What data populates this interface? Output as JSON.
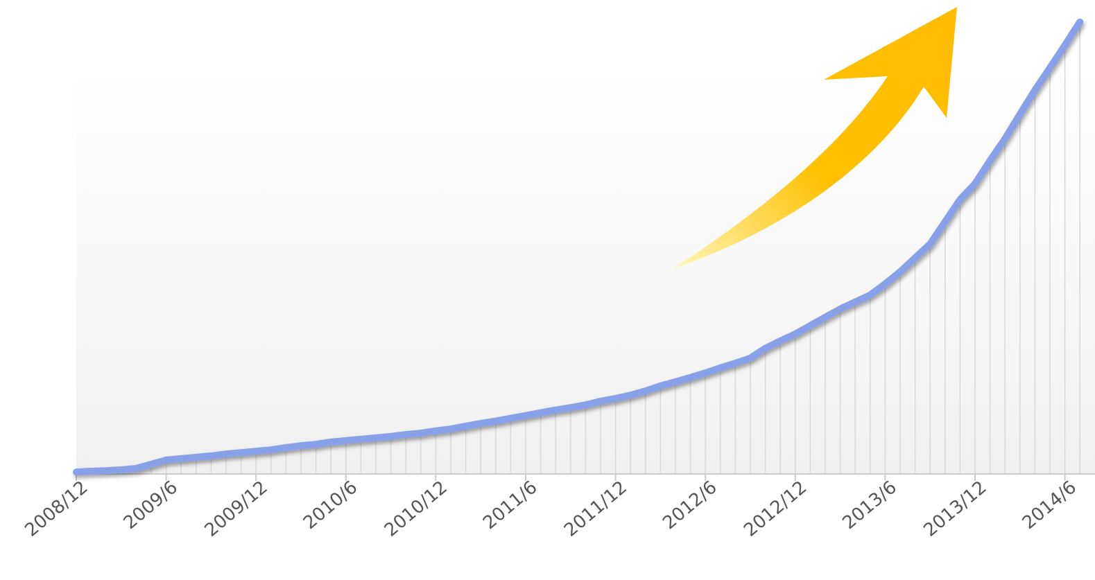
{
  "chart_data": {
    "type": "line",
    "categories": [
      "2008/12",
      null,
      null,
      null,
      null,
      null,
      "2009/6",
      null,
      null,
      null,
      null,
      null,
      "2009/12",
      null,
      null,
      null,
      null,
      null,
      "2010/6",
      null,
      null,
      null,
      null,
      null,
      "2010/12",
      null,
      null,
      null,
      null,
      null,
      "2011/6",
      null,
      null,
      null,
      null,
      null,
      "2011/12",
      null,
      null,
      null,
      null,
      null,
      "2012/6",
      null,
      null,
      null,
      null,
      null,
      "2012/12",
      null,
      null,
      null,
      null,
      null,
      "2013/6",
      null,
      null,
      null,
      null,
      null,
      "2013/12",
      null,
      null,
      null,
      null,
      null,
      "2014/6",
      null
    ],
    "values": [
      0.4,
      0.6,
      0.7,
      0.9,
      1.2,
      2.1,
      3.0,
      3.3,
      3.6,
      3.9,
      4.3,
      4.6,
      4.9,
      5.2,
      5.7,
      6.1,
      6.4,
      6.9,
      7.2,
      7.5,
      7.8,
      8.1,
      8.5,
      8.8,
      9.3,
      9.7,
      10.3,
      10.9,
      11.4,
      12.0,
      12.6,
      13.2,
      13.8,
      14.3,
      14.9,
      15.7,
      16.3,
      17.0,
      17.9,
      19.0,
      19.9,
      20.8,
      21.8,
      22.9,
      23.9,
      25.0,
      27.1,
      28.7,
      30.2,
      32.0,
      33.8,
      35.6,
      37.1,
      38.6,
      41.0,
      43.6,
      46.6,
      49.6,
      54.4,
      59.2,
      62.6,
      67.6,
      72.3,
      77.6,
      82.8,
      87.6,
      92.5,
      97.5
    ],
    "color": "#87a0e8",
    "ylim": [
      0,
      100
    ],
    "grid": true
  }
}
